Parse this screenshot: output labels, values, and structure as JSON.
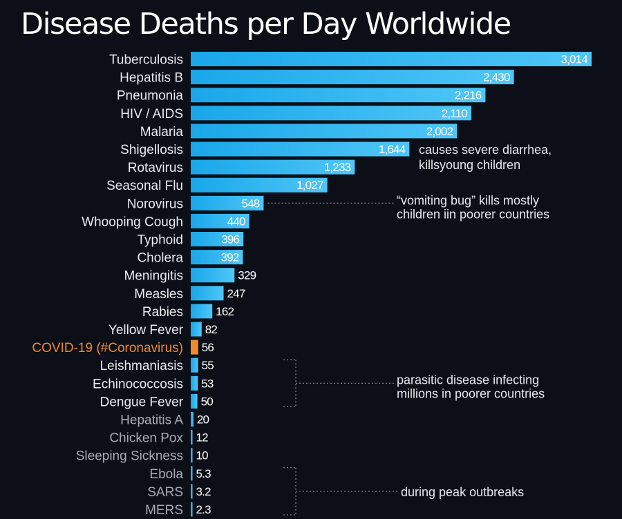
{
  "chart_data": {
    "type": "bar",
    "orientation": "horizontal",
    "title": "Disease Deaths per Day Worldwide",
    "xlabel": "",
    "ylabel": "",
    "xlim": [
      0,
      3014
    ],
    "categories": [
      "Tuberculosis",
      "Hepatitis B",
      "Pneumonia",
      "HIV / AIDS",
      "Malaria",
      "Shigellosis",
      "Rotavirus",
      "Seasonal Flu",
      "Norovirus",
      "Whooping Cough",
      "Typhoid",
      "Cholera",
      "Meningitis",
      "Measles",
      "Rabies",
      "Yellow Fever",
      "COVID-19 (#Coronavirus)",
      "Leishmaniasis",
      "Echinococcosis",
      "Dengue Fever",
      "Hepatitis A",
      "Chicken Pox",
      "Sleeping Sickness",
      "Ebola",
      "SARS",
      "MERS"
    ],
    "values": [
      3014,
      2430,
      2216,
      2110,
      2002,
      1644,
      1233,
      1027,
      548,
      440,
      396,
      392,
      329,
      247,
      162,
      82,
      56,
      55,
      53,
      50,
      20,
      12,
      10,
      5.3,
      3.2,
      2.3
    ],
    "value_labels": [
      "3,014",
      "2,430",
      "2,216",
      "2,110",
      "2,002",
      "1,644",
      "1,233",
      "1,027",
      "548",
      "440",
      "396",
      "392",
      "329",
      "247",
      "162",
      "82",
      "56",
      "55",
      "53",
      "50",
      "20",
      "12",
      "10",
      "5.3",
      "3.2",
      "2.3"
    ],
    "highlight_category": "COVID-19 (#Coronavirus)",
    "colors": {
      "bar": "#19a7ea",
      "bar_light": "#4fc6f7",
      "highlight": "#f28a2e",
      "label": "#e8ebf0",
      "dim_label": "#a6acb8",
      "leader": "#9aa0ab"
    },
    "annotations": [
      {
        "lines": [
          "causes severe diarrhea,",
          "killsyoung children"
        ],
        "category": "Shigellosis"
      },
      {
        "lines": [
          "“vomiting bug” kills mostly",
          "children iin poorer countries"
        ],
        "category": "Norovirus"
      },
      {
        "lines": [
          "parasitic disease infecting",
          "millions in poorer countries"
        ],
        "categories": [
          "Leishmaniasis",
          "Echinococcosis",
          "Dengue Fever"
        ]
      },
      {
        "lines": [
          "during peak outbreaks"
        ],
        "categories": [
          "Ebola",
          "SARS",
          "MERS"
        ]
      }
    ]
  }
}
